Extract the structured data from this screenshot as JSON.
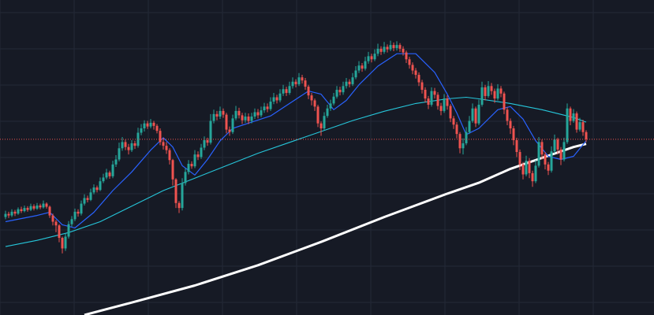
{
  "colors": {
    "background": "#161a25",
    "grid": "#242936",
    "up": "#26a69a",
    "down": "#ef5350",
    "ma_fast": "#2962ff",
    "ma_mid": "#26c6da",
    "ma_slow": "#ffffff",
    "price_line": "#ef5350"
  },
  "chart_data": {
    "type": "candlestick",
    "title": "",
    "xlabel": "",
    "ylabel": "",
    "grid": true,
    "legend": "none",
    "x_range": [
      0,
      185
    ],
    "y_range": [
      0,
      100
    ],
    "current_price": 56.5,
    "candles": [
      [
        0,
        31.5,
        32.5,
        33.5,
        30.8
      ],
      [
        1,
        32.5,
        32.0,
        33.2,
        31.2
      ],
      [
        2,
        32.0,
        33.2,
        34.0,
        31.5
      ],
      [
        3,
        33.2,
        32.6,
        33.8,
        31.8
      ],
      [
        4,
        32.6,
        34.0,
        34.6,
        32.2
      ],
      [
        5,
        34.0,
        33.4,
        34.8,
        32.8
      ],
      [
        6,
        33.4,
        34.4,
        35.2,
        33.0
      ],
      [
        7,
        34.4,
        33.8,
        35.0,
        33.2
      ],
      [
        8,
        33.8,
        35.0,
        35.8,
        33.4
      ],
      [
        9,
        35.0,
        34.2,
        35.6,
        33.6
      ],
      [
        10,
        34.2,
        35.2,
        36.0,
        33.8
      ],
      [
        11,
        35.2,
        34.6,
        35.8,
        34.0
      ],
      [
        12,
        34.6,
        35.8,
        36.8,
        34.2
      ],
      [
        13,
        35.8,
        34.8,
        36.2,
        34.2
      ],
      [
        14,
        34.8,
        32.0,
        35.2,
        31.2
      ],
      [
        15,
        32.0,
        30.0,
        32.6,
        28.8
      ],
      [
        16,
        30.0,
        28.8,
        30.6,
        26.6
      ],
      [
        17,
        28.8,
        24.8,
        29.2,
        23.4
      ],
      [
        18,
        24.8,
        21.4,
        25.2,
        19.8
      ],
      [
        19,
        21.4,
        25.2,
        26.2,
        20.6
      ],
      [
        20,
        25.2,
        29.2,
        30.2,
        24.6
      ],
      [
        21,
        29.2,
        30.8,
        31.8,
        28.4
      ],
      [
        22,
        30.8,
        33.2,
        34.2,
        30.2
      ],
      [
        23,
        33.2,
        32.6,
        34.0,
        31.6
      ],
      [
        24,
        32.6,
        35.8,
        36.8,
        32.0
      ],
      [
        25,
        35.8,
        37.6,
        38.8,
        35.2
      ],
      [
        26,
        37.6,
        37.0,
        38.4,
        36.2
      ],
      [
        27,
        37.0,
        39.4,
        40.6,
        36.6
      ],
      [
        28,
        39.4,
        41.0,
        42.0,
        38.8
      ],
      [
        29,
        41.0,
        40.2,
        41.6,
        39.4
      ],
      [
        30,
        40.2,
        43.0,
        44.2,
        39.8
      ],
      [
        31,
        43.0,
        44.2,
        45.4,
        42.4
      ],
      [
        32,
        44.2,
        45.8,
        47.0,
        43.6
      ],
      [
        33,
        45.8,
        44.6,
        46.4,
        43.8
      ],
      [
        34,
        44.6,
        48.4,
        49.6,
        44.0
      ],
      [
        35,
        48.4,
        50.0,
        51.4,
        47.6
      ],
      [
        36,
        50.0,
        53.6,
        55.4,
        49.4
      ],
      [
        37,
        53.6,
        55.6,
        57.2,
        52.8
      ],
      [
        38,
        55.6,
        54.0,
        56.4,
        53.0
      ],
      [
        39,
        54.0,
        53.0,
        55.0,
        51.6
      ],
      [
        40,
        53.0,
        55.2,
        56.2,
        52.4
      ],
      [
        41,
        55.2,
        54.4,
        56.0,
        53.4
      ],
      [
        42,
        54.4,
        58.6,
        60.2,
        53.8
      ],
      [
        43,
        58.6,
        60.0,
        61.4,
        57.8
      ],
      [
        44,
        60.0,
        61.6,
        62.6,
        59.0
      ],
      [
        45,
        61.6,
        60.6,
        62.4,
        59.8
      ],
      [
        46,
        60.6,
        61.8,
        63.0,
        60.0
      ],
      [
        47,
        61.8,
        60.8,
        62.4,
        59.6
      ],
      [
        48,
        60.8,
        59.2,
        61.4,
        58.4
      ],
      [
        49,
        59.2,
        55.6,
        60.0,
        54.6
      ],
      [
        50,
        55.6,
        54.4,
        57.0,
        53.2
      ],
      [
        51,
        54.4,
        53.0,
        55.6,
        51.8
      ],
      [
        52,
        53.0,
        49.8,
        53.6,
        48.4
      ],
      [
        53,
        49.8,
        43.6,
        50.2,
        41.6
      ],
      [
        54,
        43.6,
        36.0,
        44.0,
        34.4
      ],
      [
        55,
        36.0,
        34.4,
        36.6,
        32.8
      ],
      [
        56,
        34.4,
        42.4,
        44.0,
        33.6
      ],
      [
        57,
        42.4,
        46.0,
        47.2,
        41.6
      ],
      [
        58,
        46.0,
        48.6,
        49.8,
        45.2
      ],
      [
        59,
        48.6,
        47.8,
        49.4,
        47.0
      ],
      [
        60,
        47.8,
        51.6,
        53.0,
        47.2
      ],
      [
        61,
        51.6,
        50.8,
        52.6,
        49.8
      ],
      [
        62,
        50.8,
        53.8,
        55.0,
        50.2
      ],
      [
        63,
        53.8,
        56.2,
        57.4,
        53.0
      ],
      [
        64,
        56.2,
        55.4,
        57.0,
        54.4
      ],
      [
        65,
        55.4,
        62.4,
        64.6,
        54.8
      ],
      [
        66,
        62.4,
        64.6,
        66.0,
        61.6
      ],
      [
        67,
        64.6,
        63.8,
        65.6,
        62.6
      ],
      [
        68,
        63.8,
        65.6,
        67.0,
        63.0
      ],
      [
        69,
        65.6,
        64.4,
        66.4,
        63.4
      ],
      [
        70,
        64.4,
        59.6,
        65.0,
        58.4
      ],
      [
        71,
        59.6,
        58.8,
        60.6,
        57.6
      ],
      [
        72,
        58.8,
        63.2,
        64.4,
        58.2
      ],
      [
        73,
        63.2,
        65.6,
        67.2,
        62.6
      ],
      [
        74,
        65.6,
        64.2,
        66.6,
        63.2
      ],
      [
        75,
        64.2,
        62.6,
        65.0,
        61.4
      ],
      [
        76,
        62.6,
        63.8,
        65.0,
        61.8
      ],
      [
        77,
        63.8,
        62.4,
        64.8,
        61.4
      ],
      [
        78,
        62.4,
        63.8,
        65.0,
        61.6
      ],
      [
        79,
        63.8,
        65.2,
        66.4,
        63.0
      ],
      [
        80,
        65.2,
        64.2,
        66.2,
        63.2
      ],
      [
        81,
        64.2,
        65.8,
        67.0,
        63.6
      ],
      [
        82,
        65.8,
        67.0,
        68.2,
        65.0
      ],
      [
        83,
        67.0,
        66.2,
        68.0,
        65.2
      ],
      [
        84,
        66.2,
        68.6,
        70.0,
        65.6
      ],
      [
        85,
        68.6,
        70.0,
        71.4,
        67.8
      ],
      [
        86,
        70.0,
        69.0,
        70.8,
        68.0
      ],
      [
        87,
        69.0,
        71.2,
        72.6,
        68.4
      ],
      [
        88,
        71.2,
        72.6,
        74.0,
        70.4
      ],
      [
        89,
        72.6,
        71.4,
        73.4,
        70.4
      ],
      [
        90,
        71.4,
        73.6,
        75.0,
        70.8
      ],
      [
        91,
        73.6,
        75.0,
        76.4,
        72.8
      ],
      [
        92,
        75.0,
        74.2,
        75.8,
        73.2
      ],
      [
        93,
        74.2,
        76.4,
        77.8,
        73.6
      ],
      [
        94,
        76.4,
        75.4,
        77.2,
        74.4
      ],
      [
        95,
        75.4,
        73.4,
        76.2,
        72.4
      ],
      [
        96,
        73.4,
        70.6,
        74.0,
        69.4
      ],
      [
        97,
        70.6,
        69.0,
        71.4,
        67.4
      ],
      [
        98,
        69.0,
        67.0,
        69.6,
        65.6
      ],
      [
        99,
        67.0,
        61.6,
        67.6,
        60.4
      ],
      [
        100,
        61.6,
        60.0,
        62.2,
        57.6
      ],
      [
        101,
        60.0,
        64.0,
        65.2,
        59.4
      ],
      [
        102,
        64.0,
        66.4,
        67.6,
        63.4
      ],
      [
        103,
        66.4,
        68.0,
        69.2,
        65.6
      ],
      [
        104,
        68.0,
        70.2,
        71.4,
        67.4
      ],
      [
        105,
        70.2,
        72.4,
        73.6,
        69.6
      ],
      [
        106,
        72.4,
        71.6,
        73.4,
        70.6
      ],
      [
        107,
        71.6,
        73.6,
        75.0,
        70.8
      ],
      [
        108,
        73.6,
        75.0,
        76.2,
        72.8
      ],
      [
        109,
        75.0,
        74.2,
        75.8,
        73.2
      ],
      [
        110,
        74.2,
        76.4,
        77.8,
        73.6
      ],
      [
        111,
        76.4,
        78.6,
        80.0,
        75.8
      ],
      [
        112,
        78.6,
        80.2,
        81.6,
        77.8
      ],
      [
        113,
        80.2,
        79.2,
        81.0,
        78.2
      ],
      [
        114,
        79.2,
        81.6,
        83.0,
        78.6
      ],
      [
        115,
        81.6,
        83.2,
        84.6,
        80.8
      ],
      [
        116,
        83.2,
        82.2,
        84.0,
        81.2
      ],
      [
        117,
        82.2,
        84.0,
        85.4,
        81.6
      ],
      [
        118,
        84.0,
        85.6,
        87.2,
        83.2
      ],
      [
        119,
        85.6,
        84.6,
        86.4,
        83.6
      ],
      [
        120,
        84.6,
        86.2,
        87.8,
        84.0
      ],
      [
        121,
        86.2,
        85.4,
        87.0,
        84.4
      ],
      [
        122,
        85.4,
        86.8,
        88.2,
        84.8
      ],
      [
        123,
        86.8,
        85.8,
        87.6,
        84.8
      ],
      [
        124,
        85.8,
        86.8,
        88.0,
        85.0
      ],
      [
        125,
        86.8,
        85.6,
        87.4,
        84.6
      ],
      [
        126,
        85.6,
        84.4,
        86.4,
        83.4
      ],
      [
        127,
        84.4,
        82.2,
        85.0,
        81.0
      ],
      [
        128,
        82.2,
        80.4,
        83.0,
        79.2
      ],
      [
        129,
        80.4,
        78.6,
        81.2,
        77.4
      ],
      [
        130,
        78.6,
        77.2,
        79.4,
        76.0
      ],
      [
        131,
        77.2,
        74.8,
        78.0,
        73.6
      ],
      [
        132,
        74.8,
        72.4,
        75.6,
        71.2
      ],
      [
        133,
        72.4,
        69.6,
        73.2,
        68.4
      ],
      [
        134,
        69.6,
        67.6,
        70.4,
        66.2
      ],
      [
        135,
        67.6,
        72.0,
        73.2,
        67.0
      ],
      [
        136,
        72.0,
        70.8,
        73.0,
        69.6
      ],
      [
        137,
        70.8,
        67.2,
        71.6,
        66.0
      ],
      [
        138,
        67.2,
        65.6,
        68.2,
        64.2
      ],
      [
        139,
        65.6,
        69.6,
        71.0,
        65.0
      ],
      [
        140,
        69.6,
        67.2,
        70.6,
        66.0
      ],
      [
        141,
        67.2,
        63.2,
        67.8,
        62.0
      ],
      [
        142,
        63.2,
        61.2,
        64.0,
        59.8
      ],
      [
        143,
        61.2,
        58.2,
        62.0,
        56.8
      ],
      [
        144,
        58.2,
        53.6,
        58.8,
        52.0
      ],
      [
        145,
        53.6,
        55.2,
        56.8,
        51.6
      ],
      [
        146,
        55.2,
        58.8,
        60.4,
        54.6
      ],
      [
        147,
        58.8,
        62.4,
        64.0,
        58.2
      ],
      [
        148,
        62.4,
        66.4,
        68.0,
        61.8
      ],
      [
        149,
        66.4,
        61.6,
        67.0,
        60.4
      ],
      [
        150,
        61.6,
        67.6,
        69.2,
        61.0
      ],
      [
        151,
        67.6,
        73.2,
        75.0,
        67.0
      ],
      [
        152,
        73.2,
        70.4,
        74.0,
        69.0
      ],
      [
        153,
        70.4,
        73.6,
        75.2,
        69.8
      ],
      [
        154,
        73.6,
        72.0,
        74.6,
        70.8
      ],
      [
        155,
        72.0,
        69.6,
        72.8,
        68.2
      ],
      [
        156,
        69.6,
        72.8,
        74.2,
        69.0
      ],
      [
        157,
        72.8,
        71.2,
        73.6,
        70.0
      ],
      [
        158,
        71.2,
        66.0,
        71.8,
        64.6
      ],
      [
        159,
        66.0,
        62.4,
        66.8,
        61.0
      ],
      [
        160,
        62.4,
        60.0,
        63.2,
        58.2
      ],
      [
        161,
        60.0,
        56.2,
        60.8,
        54.6
      ],
      [
        162,
        56.2,
        52.4,
        57.0,
        50.8
      ],
      [
        163,
        52.4,
        48.4,
        53.2,
        46.6
      ],
      [
        164,
        48.4,
        45.2,
        49.2,
        43.6
      ],
      [
        165,
        45.2,
        49.6,
        51.2,
        44.6
      ],
      [
        166,
        49.6,
        45.6,
        50.4,
        44.0
      ],
      [
        167,
        45.6,
        43.0,
        46.4,
        41.2
      ],
      [
        168,
        43.0,
        48.0,
        49.8,
        42.4
      ],
      [
        169,
        48.0,
        55.6,
        57.2,
        47.4
      ],
      [
        170,
        55.6,
        51.6,
        56.4,
        50.0
      ],
      [
        171,
        51.6,
        48.4,
        52.4,
        46.8
      ],
      [
        172,
        48.4,
        46.4,
        49.2,
        45.0
      ],
      [
        173,
        46.4,
        52.6,
        54.2,
        45.8
      ],
      [
        174,
        52.6,
        56.4,
        58.0,
        52.0
      ],
      [
        175,
        56.4,
        53.2,
        57.0,
        51.6
      ],
      [
        176,
        53.2,
        50.0,
        54.0,
        48.2
      ],
      [
        177,
        50.0,
        55.6,
        57.0,
        49.4
      ],
      [
        178,
        55.6,
        66.4,
        68.0,
        55.0
      ],
      [
        179,
        66.4,
        62.4,
        67.0,
        61.0
      ],
      [
        180,
        62.4,
        64.8,
        66.2,
        61.8
      ],
      [
        181,
        64.8,
        59.6,
        65.4,
        58.6
      ],
      [
        182,
        59.6,
        62.0,
        63.4,
        59.0
      ],
      [
        183,
        62.0,
        58.8,
        62.8,
        57.6
      ],
      [
        184,
        58.8,
        56.5,
        59.4,
        55.6
      ]
    ],
    "ma_fast": [
      [
        0,
        30.0
      ],
      [
        10,
        32.0
      ],
      [
        14,
        33.0
      ],
      [
        18,
        29.0
      ],
      [
        22,
        28.0
      ],
      [
        28,
        33.0
      ],
      [
        34,
        40.0
      ],
      [
        40,
        46.0
      ],
      [
        46,
        53.0
      ],
      [
        50,
        57.0
      ],
      [
        53,
        54.0
      ],
      [
        56,
        48.0
      ],
      [
        60,
        45.0
      ],
      [
        64,
        50.0
      ],
      [
        68,
        56.0
      ],
      [
        72,
        60.0
      ],
      [
        78,
        62.0
      ],
      [
        84,
        64.0
      ],
      [
        90,
        68.0
      ],
      [
        96,
        72.0
      ],
      [
        100,
        71.0
      ],
      [
        104,
        66.0
      ],
      [
        108,
        69.0
      ],
      [
        112,
        74.0
      ],
      [
        118,
        80.0
      ],
      [
        124,
        84.0
      ],
      [
        130,
        84.0
      ],
      [
        136,
        78.0
      ],
      [
        140,
        71.0
      ],
      [
        143,
        65.0
      ],
      [
        146,
        58.0
      ],
      [
        150,
        60.0
      ],
      [
        156,
        66.0
      ],
      [
        160,
        67.0
      ],
      [
        164,
        63.0
      ],
      [
        168,
        56.0
      ],
      [
        172,
        51.0
      ],
      [
        176,
        50.0
      ],
      [
        180,
        51.0
      ],
      [
        184,
        56.0
      ]
    ],
    "ma_mid": [
      [
        0,
        22.0
      ],
      [
        10,
        24.0
      ],
      [
        20,
        26.5
      ],
      [
        30,
        30.0
      ],
      [
        40,
        35.0
      ],
      [
        50,
        40.0
      ],
      [
        60,
        44.0
      ],
      [
        70,
        48.0
      ],
      [
        80,
        52.0
      ],
      [
        90,
        55.5
      ],
      [
        100,
        59.0
      ],
      [
        110,
        62.5
      ],
      [
        120,
        65.5
      ],
      [
        130,
        68.0
      ],
      [
        140,
        69.5
      ],
      [
        146,
        70.0
      ],
      [
        150,
        69.5
      ],
      [
        160,
        68.0
      ],
      [
        170,
        66.0
      ],
      [
        180,
        63.5
      ],
      [
        184,
        62.0
      ]
    ],
    "ma_slow": [
      [
        25,
        0.0
      ],
      [
        40,
        4.0
      ],
      [
        60,
        9.5
      ],
      [
        80,
        16.0
      ],
      [
        100,
        23.5
      ],
      [
        120,
        31.5
      ],
      [
        140,
        39.0
      ],
      [
        150,
        42.5
      ],
      [
        160,
        47.0
      ],
      [
        170,
        50.5
      ],
      [
        180,
        54.0
      ],
      [
        184,
        55.0
      ]
    ]
  }
}
